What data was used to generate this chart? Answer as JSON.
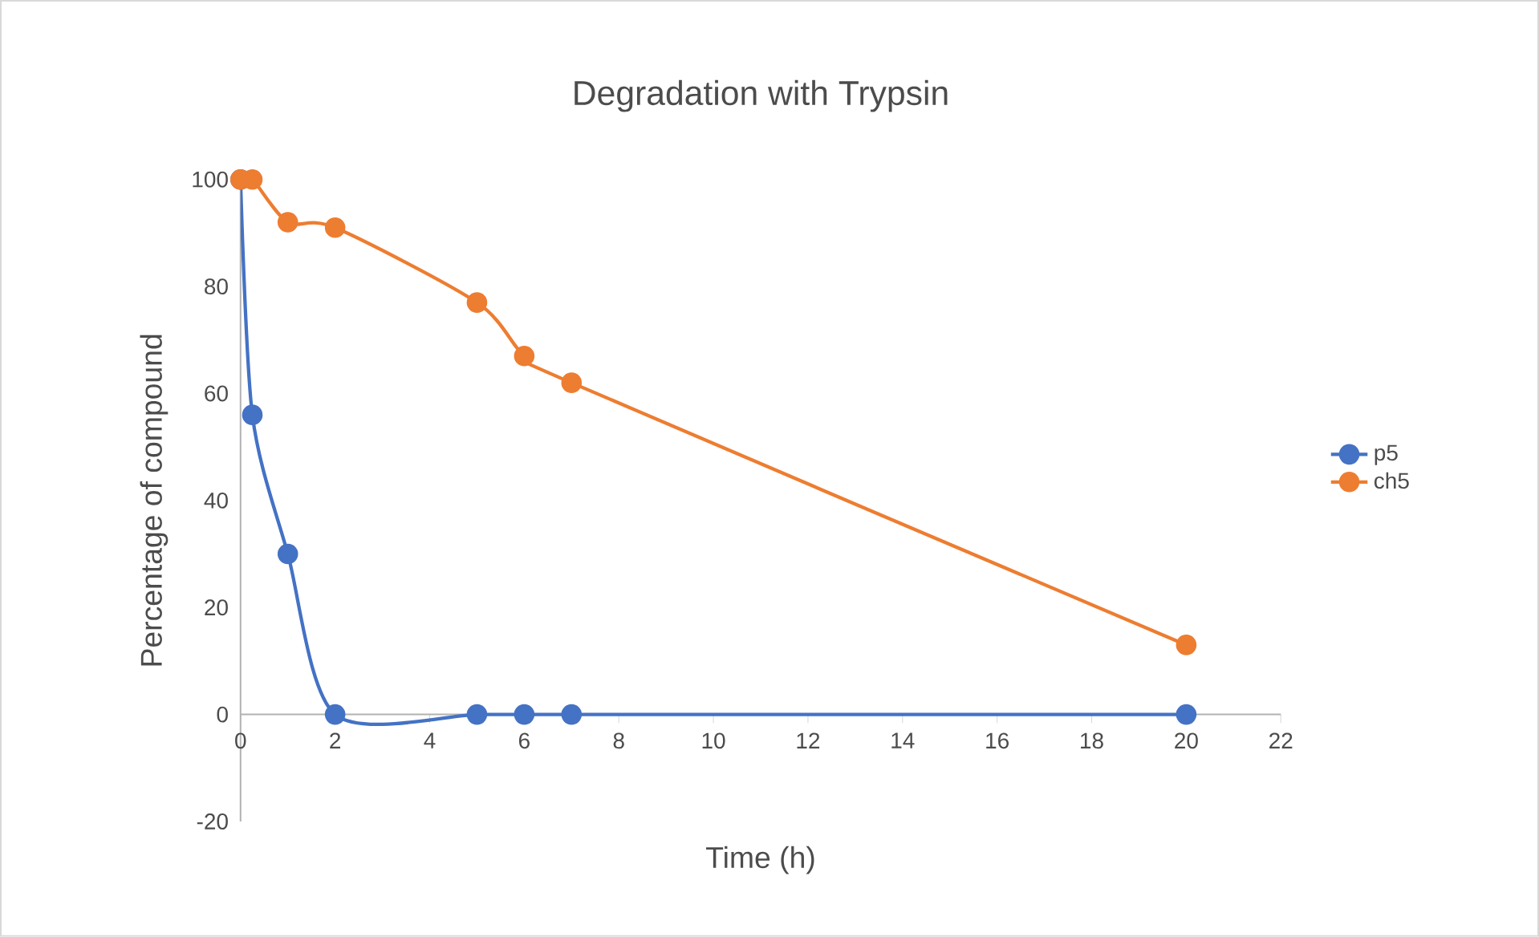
{
  "chart_data": {
    "type": "line",
    "title": "Degradation with Trypsin",
    "xlabel": "Time (h)",
    "ylabel": "Percentage of compound",
    "xlim": [
      0,
      22
    ],
    "xticks": [
      0,
      2,
      4,
      6,
      8,
      10,
      12,
      14,
      16,
      18,
      20,
      22
    ],
    "ylim": [
      -20,
      100
    ],
    "yticks": [
      -20,
      0,
      20,
      40,
      60,
      80,
      100
    ],
    "grid": false,
    "legend": "right",
    "marker": "circle",
    "line_style": "solid",
    "series": [
      {
        "name": "p5",
        "color": "#4472c4",
        "x": [
          0,
          0.25,
          1,
          2,
          5,
          6,
          7,
          20
        ],
        "values": [
          100,
          56,
          30,
          0,
          0,
          0,
          0,
          0
        ]
      },
      {
        "name": "ch5",
        "color": "#ed7d31",
        "x": [
          0,
          0.25,
          1,
          2,
          5,
          6,
          7,
          20
        ],
        "values": [
          100,
          100,
          92,
          91,
          77,
          67,
          62,
          13
        ]
      }
    ]
  }
}
